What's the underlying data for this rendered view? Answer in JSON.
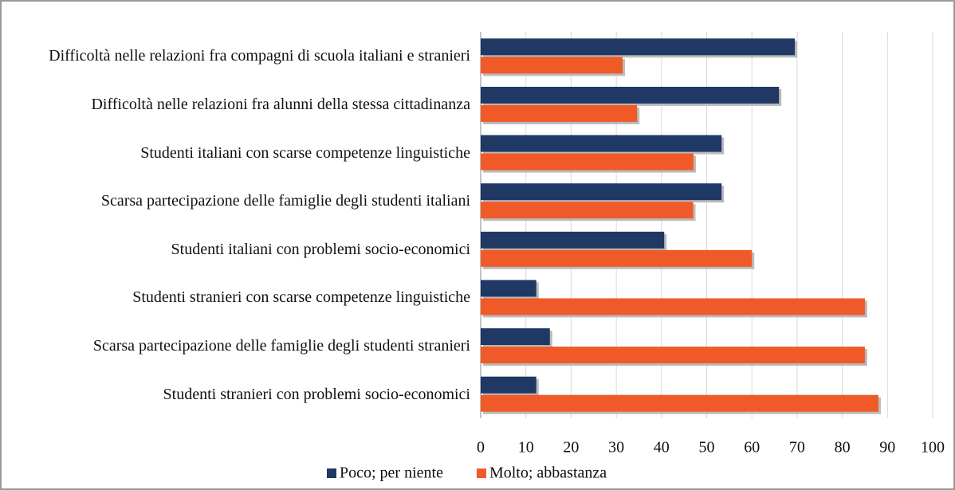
{
  "chart_data": {
    "type": "hbar",
    "categories": [
      "Difficoltà nelle relazioni fra compagni di scuola italiani e stranieri",
      "Difficoltà nelle relazioni fra alunni della stessa cittadinanza",
      "Studenti italiani con scarse competenze linguistiche",
      "Scarsa partecipazione delle famiglie degli studenti italiani",
      "Studenti italiani con problemi socio-economici",
      "Studenti stranieri con scarse competenze linguistiche",
      "Scarsa partecipazione delle famiglie degli studenti stranieri",
      "Studenti stranieri con problemi socio-economici"
    ],
    "series": [
      {
        "name": "Poco; per niente",
        "color": "#1f3864",
        "values": [
          69.5,
          66,
          53.3,
          53.3,
          40.6,
          12.3,
          15.3,
          12.3
        ]
      },
      {
        "name": "Molto; abbastanza",
        "color": "#f05a28",
        "values": [
          31.4,
          34.6,
          47.1,
          47,
          60,
          85,
          85,
          88
        ]
      }
    ],
    "xlim": [
      0,
      100
    ],
    "xticks": [
      0,
      10,
      20,
      30,
      40,
      50,
      60,
      70,
      80,
      90,
      100
    ],
    "grid": true,
    "legend": "bottom"
  }
}
